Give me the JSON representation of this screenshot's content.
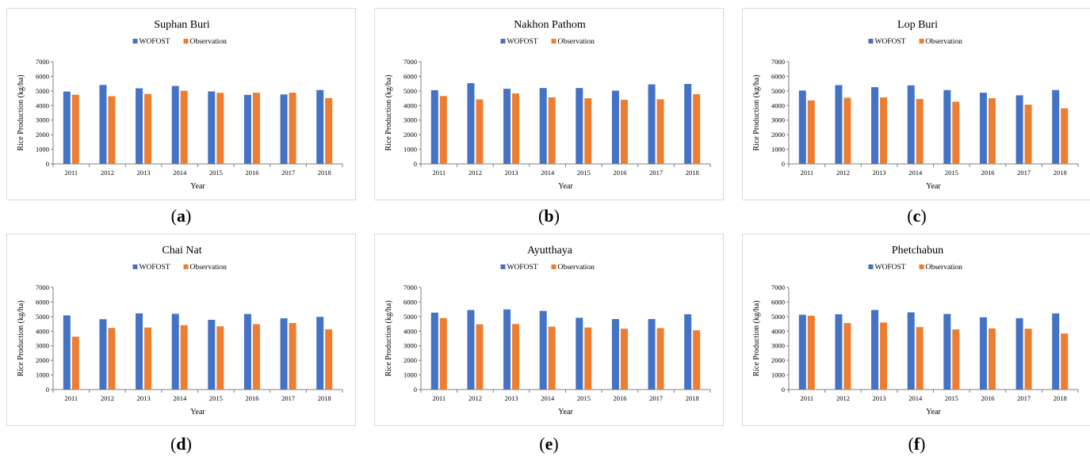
{
  "colors": {
    "wofost": "#4472C4",
    "observation": "#ED7D31",
    "axis": "#7f7f7f"
  },
  "chart_data": [
    {
      "type": "bar",
      "title": "Suphan Buri",
      "xlabel": "Year",
      "ylabel": "Rice Production (kg/ha)",
      "ylim": [
        0,
        7000
      ],
      "yticks": [
        0,
        1000,
        2000,
        3000,
        4000,
        5000,
        6000,
        7000
      ],
      "legend": "top-center",
      "categories": [
        "2011",
        "2012",
        "2013",
        "2014",
        "2015",
        "2016",
        "2017",
        "2018"
      ],
      "series": [
        {
          "name": "WOFOST",
          "values": [
            4960,
            5410,
            5180,
            5340,
            4970,
            4730,
            4760,
            5060
          ]
        },
        {
          "name": "Observation",
          "values": [
            4740,
            4640,
            4790,
            5010,
            4870,
            4880,
            4880,
            4510
          ]
        }
      ],
      "caption_letter": "a"
    },
    {
      "type": "bar",
      "title": "Nakhon Pathom",
      "xlabel": "Year",
      "ylabel": "Rice Production (kg/ha)",
      "ylim": [
        0,
        7000
      ],
      "yticks": [
        0,
        1000,
        2000,
        3000,
        4000,
        5000,
        6000,
        7000
      ],
      "legend": "top-center",
      "categories": [
        "2011",
        "2012",
        "2013",
        "2014",
        "2015",
        "2016",
        "2017",
        "2018"
      ],
      "series": [
        {
          "name": "WOFOST",
          "values": [
            5050,
            5530,
            5150,
            5200,
            5200,
            5020,
            5450,
            5480
          ]
        },
        {
          "name": "Observation",
          "values": [
            4650,
            4420,
            4830,
            4560,
            4500,
            4390,
            4430,
            4780
          ]
        }
      ],
      "caption_letter": "b"
    },
    {
      "type": "bar",
      "title": "Lop Buri",
      "xlabel": "Year",
      "ylabel": "Rice Production (kg/ha)",
      "ylim": [
        0,
        7000
      ],
      "yticks": [
        0,
        1000,
        2000,
        3000,
        4000,
        5000,
        6000,
        7000
      ],
      "legend": "top-center",
      "categories": [
        "2011",
        "2012",
        "2013",
        "2014",
        "2015",
        "2016",
        "2017",
        "2018"
      ],
      "series": [
        {
          "name": "WOFOST",
          "values": [
            5030,
            5400,
            5260,
            5380,
            5060,
            4880,
            4700,
            5060
          ]
        },
        {
          "name": "Observation",
          "values": [
            4350,
            4530,
            4560,
            4450,
            4260,
            4500,
            4060,
            3810
          ]
        }
      ],
      "caption_letter": "c"
    },
    {
      "type": "bar",
      "title": "Chai Nat",
      "xlabel": "Year",
      "ylabel": "Rice Production (kg/ha)",
      "ylim": [
        0,
        7000
      ],
      "yticks": [
        0,
        1000,
        2000,
        3000,
        4000,
        5000,
        6000,
        7000
      ],
      "legend": "top-center",
      "categories": [
        "2011",
        "2012",
        "2013",
        "2014",
        "2015",
        "2016",
        "2017",
        "2018"
      ],
      "series": [
        {
          "name": "WOFOST",
          "values": [
            5080,
            4820,
            5220,
            5190,
            4780,
            5180,
            4880,
            4980
          ]
        },
        {
          "name": "Observation",
          "values": [
            3620,
            4220,
            4250,
            4410,
            4330,
            4480,
            4560,
            4130
          ]
        }
      ],
      "caption_letter": "d"
    },
    {
      "type": "bar",
      "title": "Ayutthaya",
      "xlabel": "Year",
      "ylabel": "Rice Production (kg/ha)",
      "ylim": [
        0,
        7000
      ],
      "yticks": [
        0,
        1000,
        2000,
        3000,
        4000,
        5000,
        6000,
        7000
      ],
      "legend": "top-center",
      "categories": [
        "2011",
        "2012",
        "2013",
        "2014",
        "2015",
        "2016",
        "2017",
        "2018"
      ],
      "series": [
        {
          "name": "WOFOST",
          "values": [
            5270,
            5450,
            5490,
            5390,
            4920,
            4830,
            4830,
            5160
          ]
        },
        {
          "name": "Observation",
          "values": [
            4900,
            4470,
            4490,
            4310,
            4250,
            4170,
            4210,
            4060
          ]
        }
      ],
      "caption_letter": "e"
    },
    {
      "type": "bar",
      "title": "Phetchabun",
      "xlabel": "Year",
      "ylabel": "Rice Production (kg/ha)",
      "ylim": [
        0,
        7000
      ],
      "yticks": [
        0,
        1000,
        2000,
        3000,
        4000,
        5000,
        6000,
        7000
      ],
      "legend": "top-center",
      "categories": [
        "2011",
        "2012",
        "2013",
        "2014",
        "2015",
        "2016",
        "2017",
        "2018"
      ],
      "series": [
        {
          "name": "WOFOST",
          "values": [
            5130,
            5160,
            5450,
            5290,
            5180,
            4950,
            4890,
            5220
          ]
        },
        {
          "name": "Observation",
          "values": [
            5060,
            4560,
            4590,
            4280,
            4120,
            4190,
            4170,
            3840
          ]
        }
      ],
      "caption_letter": "f"
    }
  ]
}
